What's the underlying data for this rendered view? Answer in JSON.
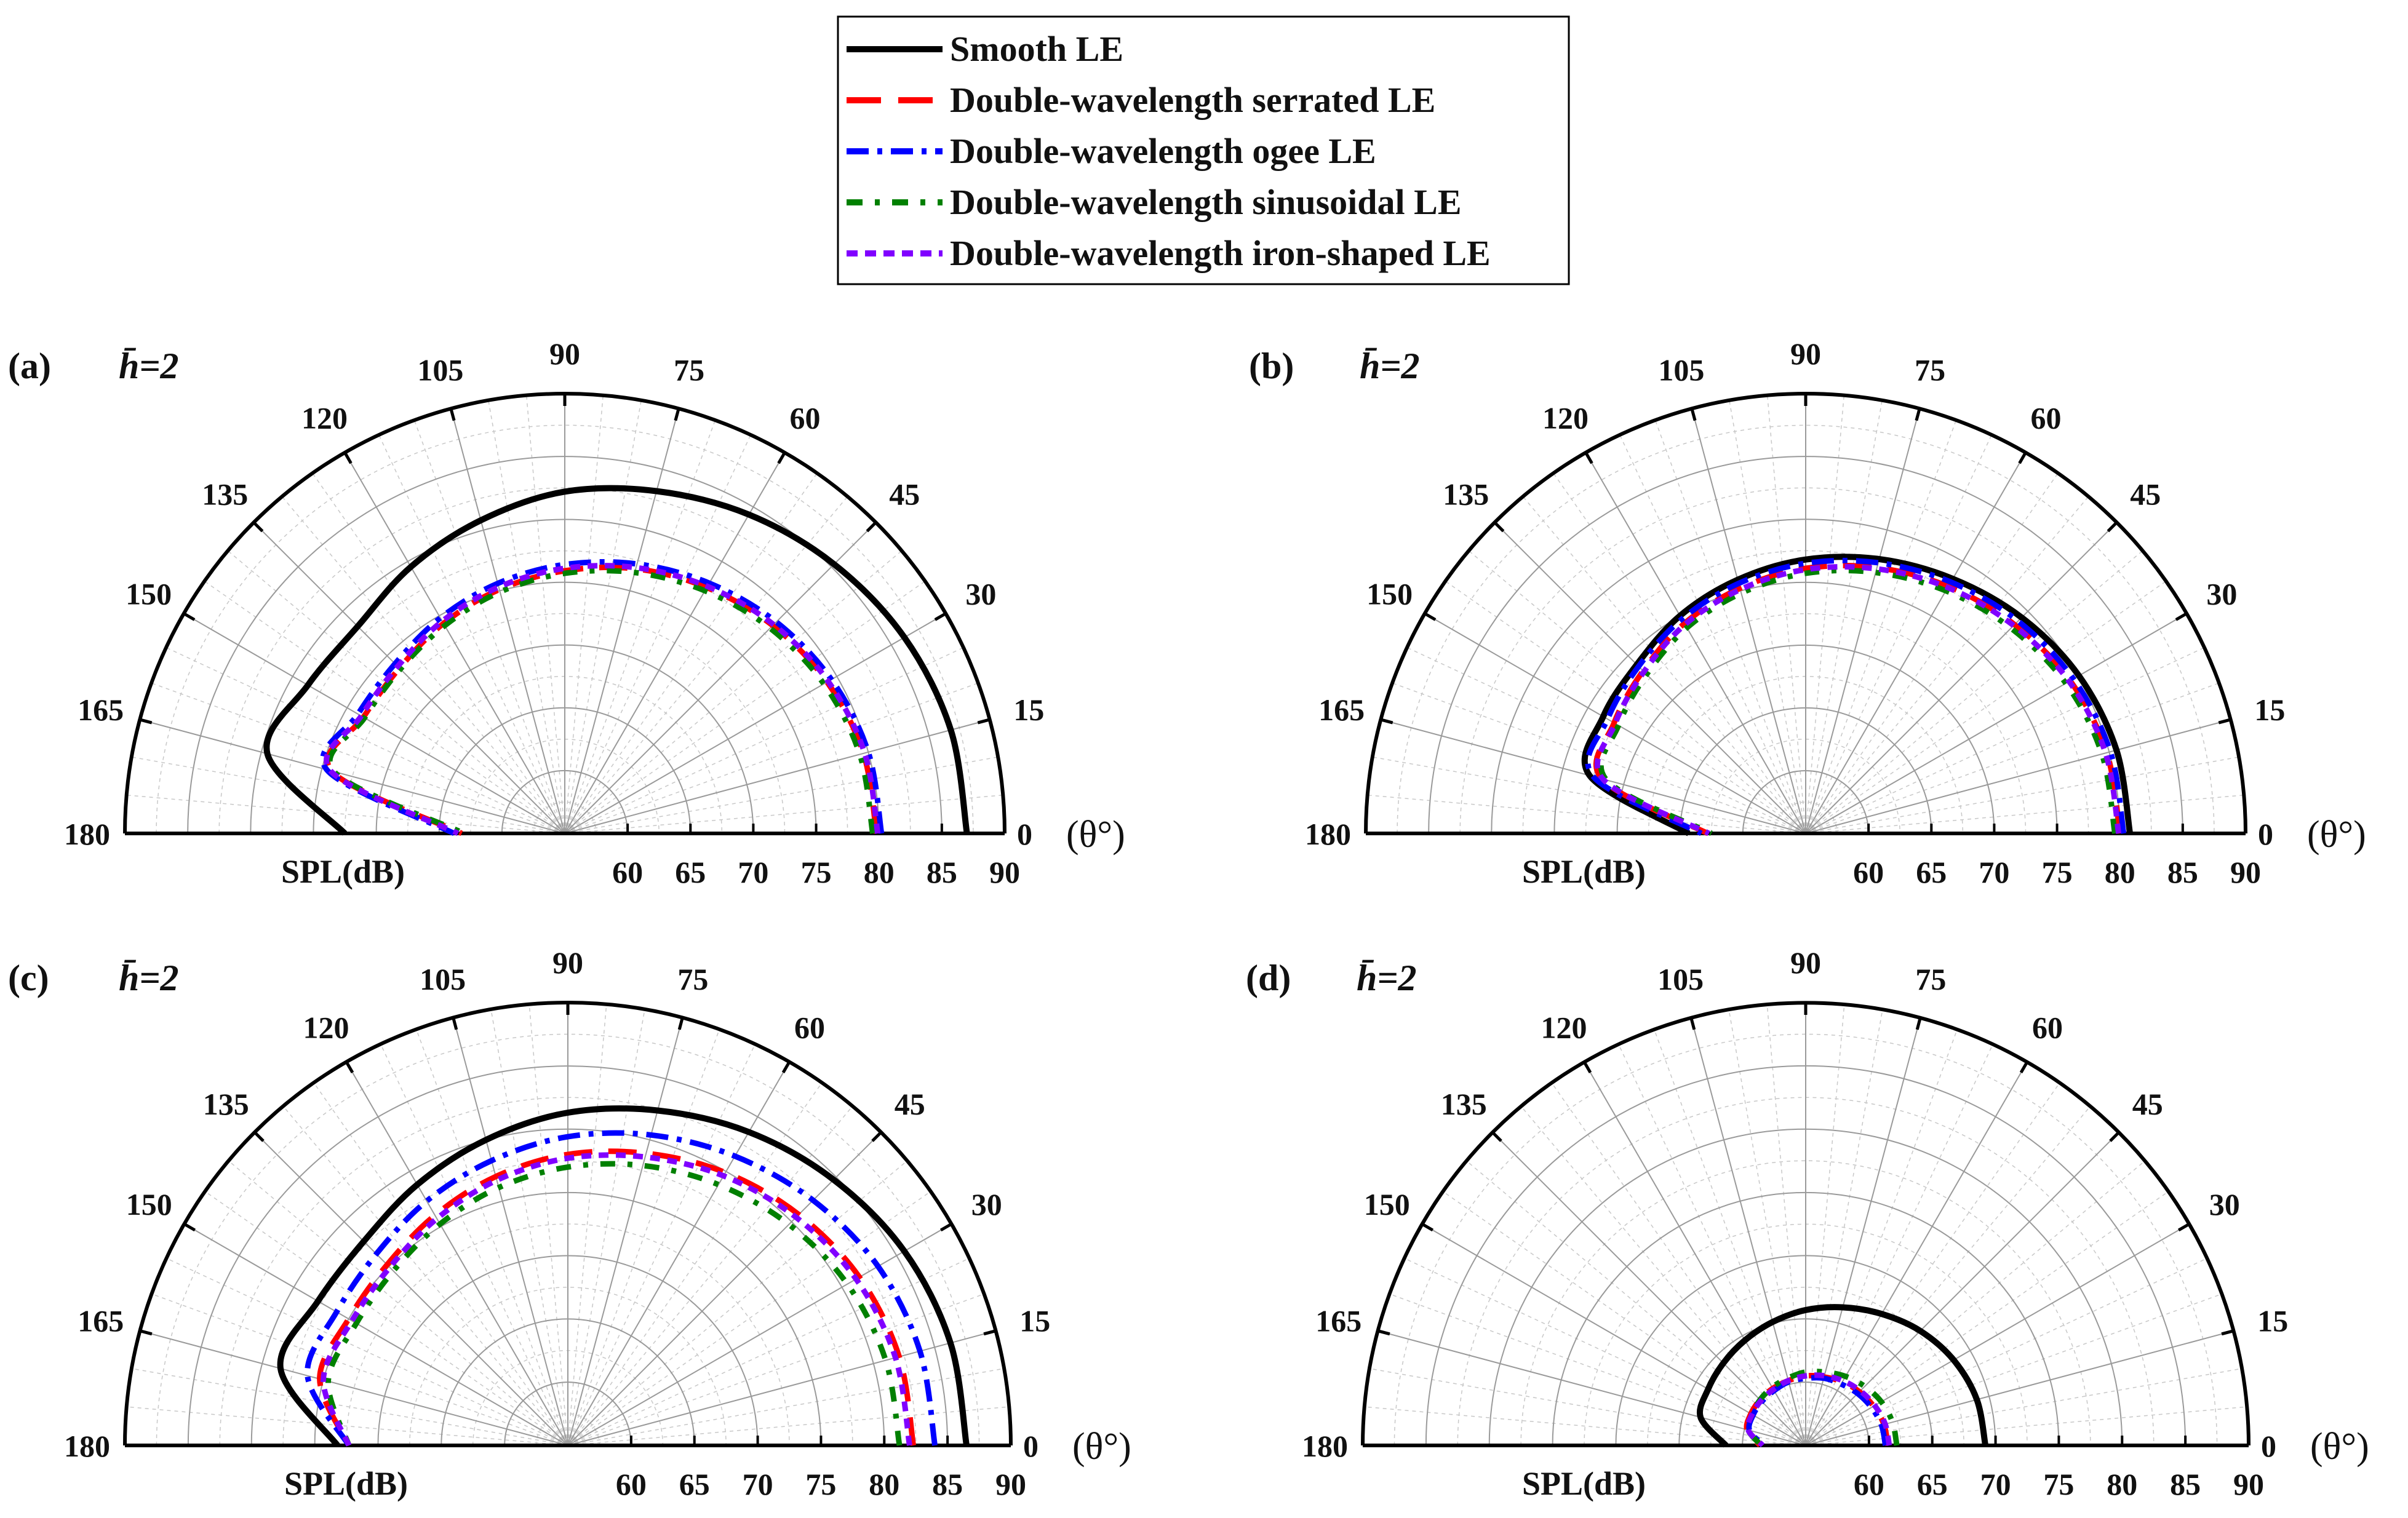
{
  "chart_data": {
    "legend": {
      "position": "top-center",
      "entries": [
        {
          "label": "Smooth LE",
          "color": "#000000",
          "dash": "solid"
        },
        {
          "label": "Double-wavelength serrated LE",
          "color": "#ff0000",
          "dash": "dashed"
        },
        {
          "label": "Double-wavelength ogee LE",
          "color": "#0000ff",
          "dash": "dash-dot"
        },
        {
          "label": "Double-wavelength sinusoidal LE",
          "color": "#008000",
          "dash": "dash-dot"
        },
        {
          "label": "Double-wavelength iron-shaped LE",
          "color": "#8000ff",
          "dash": "short-dash"
        }
      ]
    },
    "panels": [
      {
        "type": "polar-line",
        "label": "(a)",
        "param": "h̄=2",
        "theta_unit": "(θ°)",
        "theta_ticks": [
          "0",
          "15",
          "30",
          "45",
          "60",
          "75",
          "90",
          "105",
          "120",
          "135",
          "150",
          "165",
          "180"
        ],
        "r_ticks": [
          "60",
          "65",
          "70",
          "75",
          "80",
          "85",
          "90"
        ],
        "r_min": 55,
        "r_max": 90,
        "r_label": "SPL(dB)",
        "theta_deg": [
          0,
          15,
          30,
          45,
          60,
          75,
          90,
          105,
          120,
          135,
          150,
          165,
          180
        ],
        "series": [
          {
            "name": "Smooth LE",
            "values": [
              87,
              86.8,
              86.2,
              85.3,
              84.3,
              83.2,
              82.2,
              80.8,
              79.5,
              78.3,
              78.6,
              79.5,
              72.5
            ]
          },
          {
            "name": "Double-wavelength serrated LE",
            "values": [
              79.8,
              79.6,
              79.1,
              78.4,
              77.6,
              76.8,
              75.9,
              75.1,
              74.3,
              73.6,
              73.5,
              74.2,
              63.2
            ]
          },
          {
            "name": "Double-wavelength ogee LE",
            "values": [
              80.2,
              80,
              79.5,
              78.8,
              78,
              77.2,
              76.4,
              75.6,
              74.8,
              74.1,
              74,
              74.6,
              63.8
            ]
          },
          {
            "name": "Double-wavelength sinusoidal LE",
            "values": [
              79.5,
              79.3,
              78.8,
              78.1,
              77.3,
              76.5,
              75.7,
              74.9,
              74.1,
              73.5,
              73.4,
              74,
              63
            ]
          },
          {
            "name": "Double-wavelength iron-shaped LE",
            "values": [
              79.9,
              79.7,
              79.2,
              78.5,
              77.7,
              76.9,
              76.1,
              75.3,
              74.5,
              73.8,
              73.7,
              74.3,
              63.5
            ]
          }
        ]
      },
      {
        "type": "polar-line",
        "label": "(b)",
        "param": "h̄=2",
        "theta_unit": "(θ°)",
        "theta_ticks": [
          "0",
          "15",
          "30",
          "45",
          "60",
          "75",
          "90",
          "105",
          "120",
          "135",
          "150",
          "165",
          "180"
        ],
        "r_ticks": [
          "60",
          "65",
          "70",
          "75",
          "80",
          "85",
          "90"
        ],
        "r_min": 55,
        "r_max": 90,
        "r_label": "SPL(dB)",
        "theta_deg": [
          0,
          15,
          30,
          45,
          60,
          75,
          90,
          105,
          120,
          135,
          150,
          165,
          180
        ],
        "series": [
          {
            "name": "Smooth LE",
            "values": [
              80.8,
              80.6,
              80.1,
              79.3,
              78.4,
              77.6,
              76.8,
              75.9,
              75,
              74,
              73.6,
              72.8,
              64.3
            ]
          },
          {
            "name": "Double-wavelength serrated LE",
            "values": [
              80,
              79.8,
              79.3,
              78.5,
              77.7,
              76.9,
              76.1,
              75.2,
              74.3,
              73.3,
              72.6,
              71.8,
              62.8
            ]
          },
          {
            "name": "Double-wavelength ogee LE",
            "values": [
              80.3,
              80.1,
              79.6,
              78.9,
              78.1,
              77.3,
              76.5,
              75.6,
              74.7,
              73.8,
              73.2,
              72.5,
              63.3
            ]
          },
          {
            "name": "Double-wavelength sinusoidal LE",
            "values": [
              79.6,
              79.4,
              78.9,
              78.1,
              77.3,
              76.5,
              75.7,
              74.8,
              73.9,
              72.9,
              72.2,
              71.4,
              62.5
            ]
          },
          {
            "name": "Double-wavelength iron-shaped LE",
            "values": [
              79.9,
              79.7,
              79.2,
              78.4,
              77.6,
              76.8,
              76,
              75.1,
              74.2,
              73.2,
              72.5,
              71.7,
              62.7
            ]
          }
        ]
      },
      {
        "type": "polar-line",
        "label": "(c)",
        "param": "h̄=2",
        "theta_unit": "(θ°)",
        "theta_ticks": [
          "0",
          "15",
          "30",
          "45",
          "60",
          "75",
          "90",
          "105",
          "120",
          "135",
          "150",
          "165",
          "180"
        ],
        "r_ticks": [
          "60",
          "65",
          "70",
          "75",
          "80",
          "85",
          "90"
        ],
        "r_min": 55,
        "r_max": 90,
        "r_label": "SPL(dB)",
        "theta_deg": [
          0,
          15,
          30,
          45,
          60,
          75,
          90,
          105,
          120,
          135,
          150,
          165,
          180
        ],
        "series": [
          {
            "name": "Smooth LE",
            "values": [
              86.5,
              86.3,
              85.7,
              84.7,
              83.6,
              82.4,
              81.3,
              80,
              78.8,
              77.8,
              77.8,
              78.5,
              73.2
            ]
          },
          {
            "name": "Double-wavelength serrated LE",
            "values": [
              82.3,
              82.1,
              81.6,
              80.8,
              79.9,
              78.9,
              78,
              77,
              76,
              75.2,
              75,
              75.3,
              72.3
            ]
          },
          {
            "name": "Double-wavelength ogee LE",
            "values": [
              84,
              83.8,
              83.3,
              82.4,
              81.4,
              80.4,
              79.4,
              78.3,
              77.3,
              76.4,
              76.1,
              76.3,
              72.3
            ]
          },
          {
            "name": "Double-wavelength sinusoidal LE",
            "values": [
              81.2,
              81,
              80.5,
              79.7,
              78.8,
              77.9,
              77,
              76.1,
              75.2,
              74.5,
              74.3,
              74.6,
              72.3
            ]
          },
          {
            "name": "Double-wavelength iron-shaped LE",
            "values": [
              82,
              81.8,
              81.3,
              80.5,
              79.6,
              78.6,
              77.7,
              76.7,
              75.7,
              74.9,
              74.7,
              75,
              72.3
            ]
          }
        ]
      },
      {
        "type": "polar-line",
        "label": "(d)",
        "param": "h̄=2",
        "theta_unit": "(θ°)",
        "theta_ticks": [
          "0",
          "15",
          "30",
          "45",
          "60",
          "75",
          "90",
          "105",
          "120",
          "135",
          "150",
          "165",
          "180"
        ],
        "r_ticks": [
          "60",
          "65",
          "70",
          "75",
          "80",
          "85",
          "90"
        ],
        "r_min": 55,
        "r_max": 90,
        "r_label": "SPL(dB)",
        "theta_deg": [
          0,
          15,
          30,
          45,
          60,
          75,
          90,
          105,
          120,
          135,
          150,
          165,
          180
        ],
        "series": [
          {
            "name": "Smooth LE",
            "values": [
              69.2,
              69,
              68.5,
              67.8,
              67,
              66.3,
              65.7,
              65.1,
              64.6,
              64.2,
              63.9,
              63.6,
              61.3
            ]
          },
          {
            "name": "Double-wavelength serrated LE",
            "values": [
              61.5,
              61.4,
              61.2,
              61,
              60.8,
              60.6,
              60.5,
              60.3,
              60.2,
              60.1,
              60,
              59.8,
              58.6
            ]
          },
          {
            "name": "Double-wavelength ogee LE",
            "values": [
              61.3,
              61.2,
              61,
              60.8,
              60.6,
              60.5,
              60.3,
              60.2,
              60,
              59.9,
              59.8,
              59.6,
              58.3
            ]
          },
          {
            "name": "Double-wavelength sinusoidal LE",
            "values": [
              62.2,
              62.1,
              61.9,
              61.6,
              61.3,
              61,
              60.8,
              60.5,
              60.3,
              60.1,
              59.9,
              59.7,
              58.5
            ]
          },
          {
            "name": "Double-wavelength iron-shaped LE",
            "values": [
              61.6,
              61.5,
              61.3,
              61.1,
              60.9,
              60.7,
              60.5,
              60.3,
              60.1,
              60,
              59.9,
              59.7,
              58.4
            ]
          }
        ]
      }
    ]
  }
}
